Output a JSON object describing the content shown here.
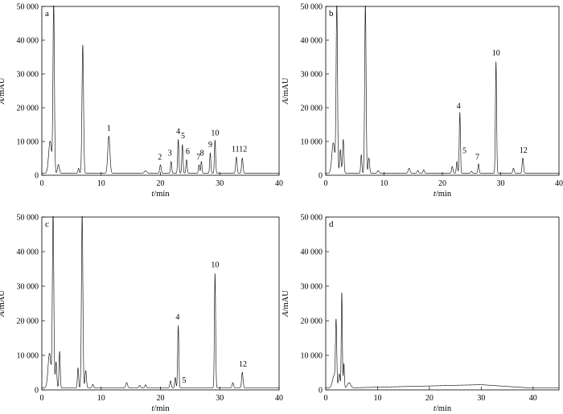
{
  "chart_data": [
    {
      "type": "line",
      "panel_label": "a",
      "xlabel": "t/min",
      "ylabel": "A/mAU",
      "xlim": [
        0,
        40
      ],
      "ylim": [
        0,
        50000
      ],
      "x_ticks": [
        0,
        10,
        20,
        30,
        40
      ],
      "y_ticks": [
        0,
        10000,
        20000,
        30000,
        40000,
        50000
      ],
      "x_tick_labels": [
        "0",
        "10",
        "20",
        "30",
        "40"
      ],
      "y_tick_labels": [
        "0",
        "10 000",
        "20 000",
        "30 000",
        "40 000",
        "50 000"
      ],
      "baseline": 600,
      "peaks": [
        {
          "t": 1.4,
          "h": 9500,
          "w": 0.25
        },
        {
          "t": 2.0,
          "h": 50000,
          "w": 0.12
        },
        {
          "t": 2.8,
          "h": 2600,
          "w": 0.15
        },
        {
          "t": 6.2,
          "h": 1500,
          "w": 0.1
        },
        {
          "t": 6.9,
          "h": 38000,
          "w": 0.13
        },
        {
          "t": 11.3,
          "h": 11000,
          "w": 0.18
        },
        {
          "t": 17.5,
          "h": 700,
          "w": 0.2
        },
        {
          "t": 20.0,
          "h": 2500,
          "w": 0.12
        },
        {
          "t": 21.8,
          "h": 3500,
          "w": 0.1
        },
        {
          "t": 23.0,
          "h": 10000,
          "w": 0.1
        },
        {
          "t": 23.7,
          "h": 8500,
          "w": 0.1
        },
        {
          "t": 24.4,
          "h": 4000,
          "w": 0.1
        },
        {
          "t": 26.5,
          "h": 2500,
          "w": 0.1
        },
        {
          "t": 26.9,
          "h": 3500,
          "w": 0.1
        },
        {
          "t": 28.4,
          "h": 6000,
          "w": 0.1
        },
        {
          "t": 29.2,
          "h": 9800,
          "w": 0.1
        },
        {
          "t": 32.8,
          "h": 4800,
          "w": 0.12
        },
        {
          "t": 33.8,
          "h": 4500,
          "w": 0.12
        }
      ],
      "annotations": [
        {
          "text": "1",
          "x": 11.3,
          "y": 13200
        },
        {
          "text": "2",
          "x": 19.9,
          "y": 4700
        },
        {
          "text": "3",
          "x": 21.6,
          "y": 5800
        },
        {
          "text": "4",
          "x": 23.0,
          "y": 12300
        },
        {
          "text": "5",
          "x": 23.8,
          "y": 10900
        },
        {
          "text": "6",
          "x": 24.6,
          "y": 6300
        },
        {
          "text": "7",
          "x": 26.4,
          "y": 4700
        },
        {
          "text": "8",
          "x": 27.0,
          "y": 5800
        },
        {
          "text": "9",
          "x": 28.4,
          "y": 8300
        },
        {
          "text": "10",
          "x": 29.2,
          "y": 11800
        },
        {
          "text": "1112",
          "x": 33.3,
          "y": 7000
        }
      ]
    },
    {
      "type": "line",
      "panel_label": "b",
      "xlabel": "t/min",
      "ylabel": "A/mAU",
      "xlim": [
        0,
        40
      ],
      "ylim": [
        0,
        50000
      ],
      "x_ticks": [
        0,
        10,
        20,
        30,
        40
      ],
      "y_ticks": [
        0,
        10000,
        20000,
        30000,
        40000,
        50000
      ],
      "x_tick_labels": [
        "0",
        "10",
        "20",
        "30",
        "40"
      ],
      "y_tick_labels": [
        "0",
        "10 000",
        "20 000",
        "30 000",
        "40 000",
        "50 000"
      ],
      "baseline": 600,
      "peaks": [
        {
          "t": 1.3,
          "h": 9000,
          "w": 0.25
        },
        {
          "t": 1.9,
          "h": 50000,
          "w": 0.12
        },
        {
          "t": 2.5,
          "h": 7000,
          "w": 0.12
        },
        {
          "t": 3.0,
          "h": 10000,
          "w": 0.12
        },
        {
          "t": 6.1,
          "h": 5500,
          "w": 0.1
        },
        {
          "t": 6.8,
          "h": 50000,
          "w": 0.12
        },
        {
          "t": 7.4,
          "h": 4500,
          "w": 0.12
        },
        {
          "t": 9.0,
          "h": 800,
          "w": 0.15
        },
        {
          "t": 14.3,
          "h": 1500,
          "w": 0.15
        },
        {
          "t": 15.8,
          "h": 800,
          "w": 0.12
        },
        {
          "t": 16.8,
          "h": 1000,
          "w": 0.12
        },
        {
          "t": 21.7,
          "h": 2000,
          "w": 0.12
        },
        {
          "t": 22.5,
          "h": 3500,
          "w": 0.1
        },
        {
          "t": 23.0,
          "h": 18000,
          "w": 0.1
        },
        {
          "t": 25.0,
          "h": 600,
          "w": 0.12
        },
        {
          "t": 26.2,
          "h": 2800,
          "w": 0.1
        },
        {
          "t": 29.2,
          "h": 33000,
          "w": 0.1
        },
        {
          "t": 32.2,
          "h": 1500,
          "w": 0.12
        },
        {
          "t": 33.8,
          "h": 4500,
          "w": 0.12
        }
      ],
      "annotations": [
        {
          "text": "4",
          "x": 22.8,
          "y": 19800
        },
        {
          "text": "5",
          "x": 23.8,
          "y": 6500
        },
        {
          "text": "7",
          "x": 26.0,
          "y": 4700
        },
        {
          "text": "10",
          "x": 29.2,
          "y": 35500
        },
        {
          "text": "12",
          "x": 33.9,
          "y": 6700
        }
      ]
    },
    {
      "type": "line",
      "panel_label": "c",
      "xlabel": "t/min",
      "ylabel": "A/mAU",
      "xlim": [
        0,
        40
      ],
      "ylim": [
        0,
        50000
      ],
      "x_ticks": [
        0,
        10,
        20,
        30,
        40
      ],
      "y_ticks": [
        0,
        10000,
        20000,
        30000,
        40000,
        50000
      ],
      "x_tick_labels": [
        "0",
        "10",
        "20",
        "30",
        "40"
      ],
      "y_tick_labels": [
        "0",
        "10 000",
        "20 000",
        "30 000",
        "40 000",
        "50 000"
      ],
      "baseline": 600,
      "peaks": [
        {
          "t": 1.3,
          "h": 10000,
          "w": 0.25
        },
        {
          "t": 1.9,
          "h": 50000,
          "w": 0.12
        },
        {
          "t": 2.4,
          "h": 7500,
          "w": 0.12
        },
        {
          "t": 3.0,
          "h": 10500,
          "w": 0.1
        },
        {
          "t": 6.1,
          "h": 5800,
          "w": 0.1
        },
        {
          "t": 6.8,
          "h": 50000,
          "w": 0.12
        },
        {
          "t": 7.4,
          "h": 5000,
          "w": 0.12
        },
        {
          "t": 8.6,
          "h": 1000,
          "w": 0.12
        },
        {
          "t": 14.3,
          "h": 1500,
          "w": 0.15
        },
        {
          "t": 16.5,
          "h": 700,
          "w": 0.12
        },
        {
          "t": 17.5,
          "h": 900,
          "w": 0.12
        },
        {
          "t": 21.7,
          "h": 2000,
          "w": 0.12
        },
        {
          "t": 22.5,
          "h": 3000,
          "w": 0.1
        },
        {
          "t": 23.0,
          "h": 18000,
          "w": 0.1
        },
        {
          "t": 29.2,
          "h": 33000,
          "w": 0.1
        },
        {
          "t": 32.2,
          "h": 1500,
          "w": 0.12
        },
        {
          "t": 33.8,
          "h": 4500,
          "w": 0.12
        }
      ],
      "annotations": [
        {
          "text": "4",
          "x": 22.9,
          "y": 20300
        },
        {
          "text": "5",
          "x": 24.0,
          "y": 2100
        },
        {
          "text": "10",
          "x": 29.2,
          "y": 35500
        },
        {
          "text": "12",
          "x": 33.9,
          "y": 6700
        }
      ]
    },
    {
      "type": "line",
      "panel_label": "d",
      "xlabel": "t/min",
      "ylabel": "A/mAU",
      "xlim": [
        0,
        45
      ],
      "ylim": [
        0,
        50000
      ],
      "x_ticks": [
        0,
        10,
        20,
        30,
        40
      ],
      "y_ticks": [
        0,
        10000,
        20000,
        30000,
        40000,
        50000
      ],
      "x_tick_labels": [
        "0",
        "10",
        "20",
        "30",
        "40"
      ],
      "y_tick_labels": [
        "0",
        "10 000",
        "20 000",
        "30 000",
        "40 000",
        "50 000"
      ],
      "baseline": 600,
      "hump": {
        "start": 5,
        "peak": 30,
        "end": 39,
        "height": 900
      },
      "peaks": [
        {
          "t": 1.6,
          "h": 3500,
          "w": 0.3
        },
        {
          "t": 2.0,
          "h": 18500,
          "w": 0.12
        },
        {
          "t": 2.6,
          "h": 4000,
          "w": 0.15
        },
        {
          "t": 3.1,
          "h": 27500,
          "w": 0.1
        },
        {
          "t": 3.5,
          "h": 7000,
          "w": 0.1
        },
        {
          "t": 4.5,
          "h": 1500,
          "w": 0.3
        }
      ],
      "annotations": []
    }
  ]
}
